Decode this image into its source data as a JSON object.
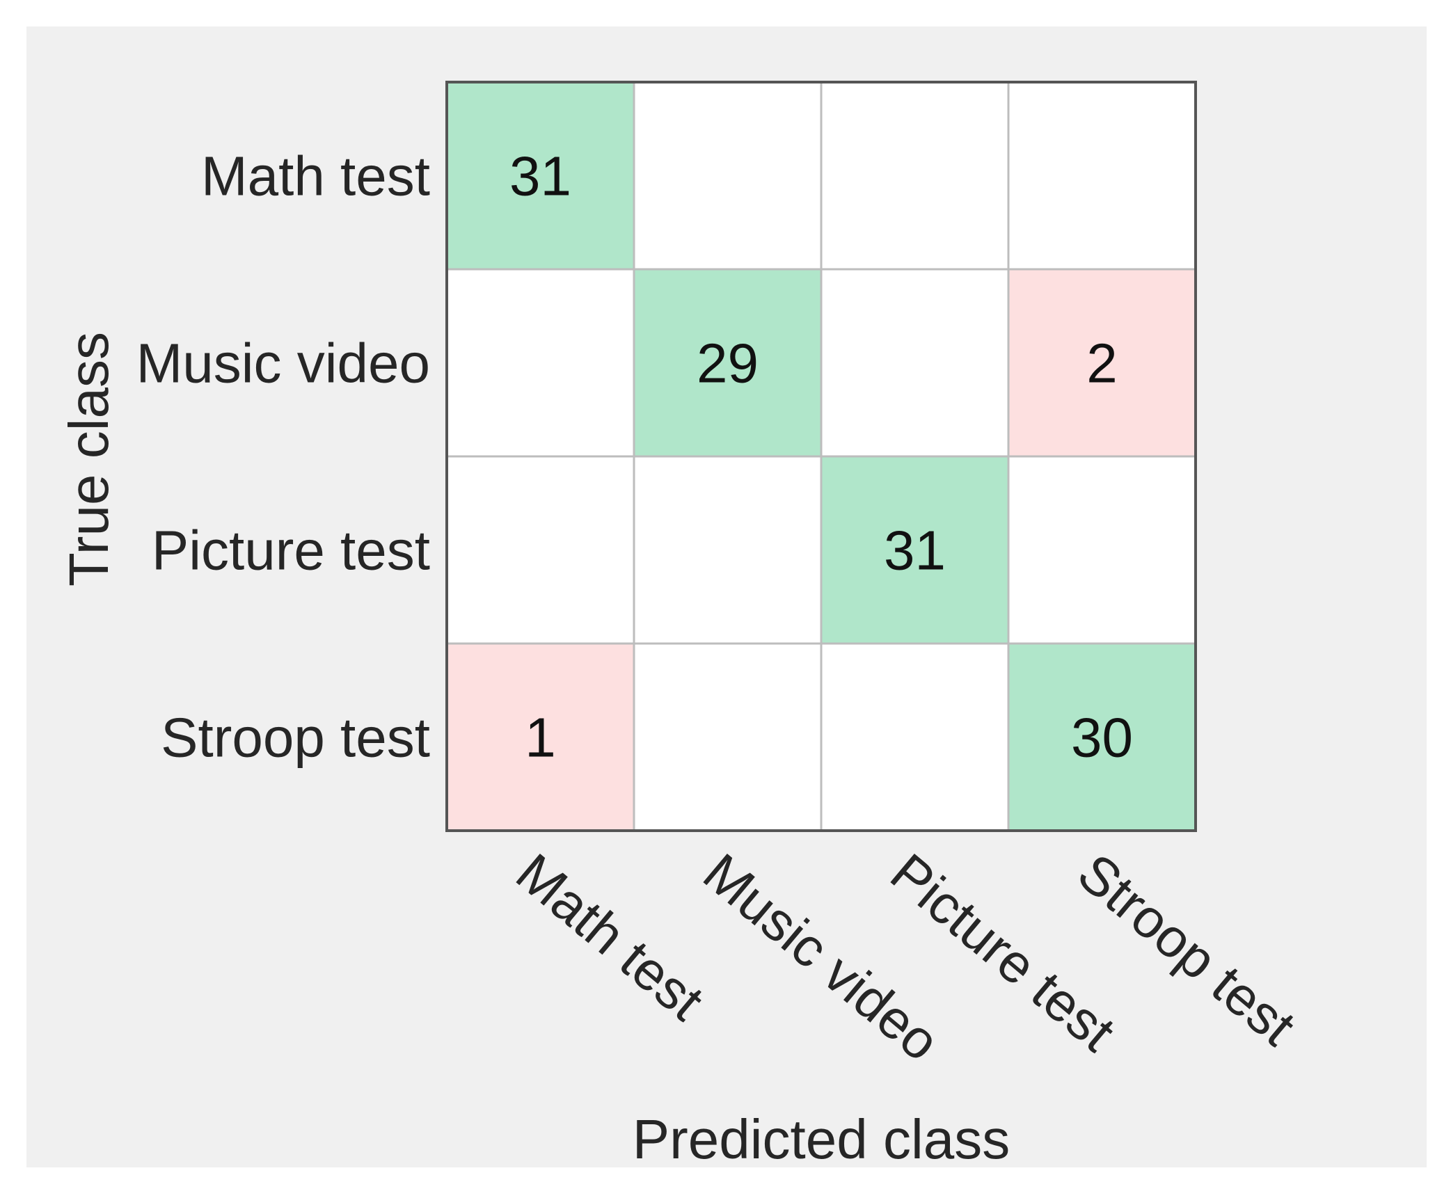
{
  "colors": {
    "background": "#f0f0f0",
    "correct_cell": "#b0e6ca",
    "incorrect_cell": "#fde0e0",
    "empty_cell": "#ffffff",
    "grid_inner": "#bdbdbd",
    "grid_outer": "#555555"
  },
  "chart_data": {
    "type": "heatmap",
    "title": "",
    "xlabel": "Predicted class",
    "ylabel": "True class",
    "row_labels": [
      "Math test",
      "Music video",
      "Picture test",
      "Stroop test"
    ],
    "col_labels": [
      "Math test",
      "Music video",
      "Picture test",
      "Stroop test"
    ],
    "values": [
      [
        31,
        null,
        null,
        null
      ],
      [
        null,
        29,
        null,
        2
      ],
      [
        null,
        null,
        31,
        null
      ],
      [
        1,
        null,
        null,
        30
      ]
    ]
  }
}
